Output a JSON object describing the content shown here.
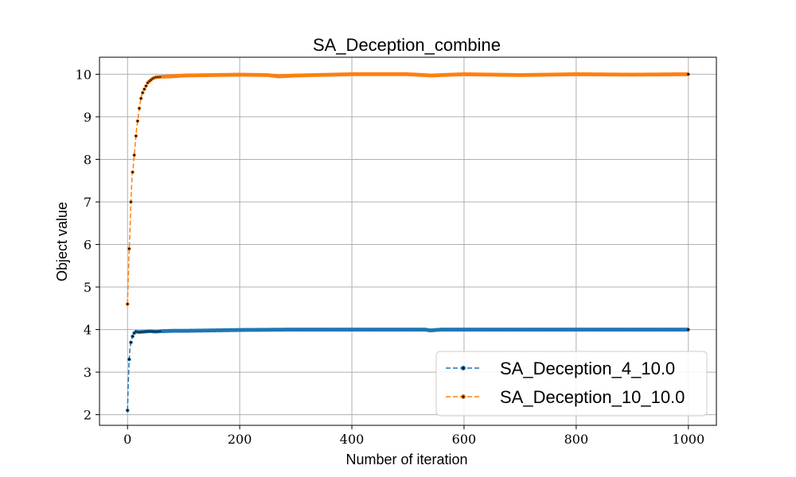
{
  "chart_data": {
    "type": "line",
    "title": "SA_Deception_combine",
    "xlabel": "Number of iteration",
    "ylabel": "Object value",
    "xlim": [
      -50,
      1050
    ],
    "ylim": [
      1.75,
      10.4
    ],
    "x_ticks": [
      0,
      200,
      400,
      600,
      800,
      1000
    ],
    "y_ticks": [
      2,
      3,
      4,
      5,
      6,
      7,
      8,
      9,
      10
    ],
    "grid": true,
    "legend_position": "lower-right",
    "series": [
      {
        "name": "SA_Deception_4_10.0",
        "color": "#1f77b4",
        "style": "dashed-with-dot-markers",
        "points": [
          [
            0,
            2.1
          ],
          [
            1,
            2.6
          ],
          [
            2,
            3.0
          ],
          [
            3,
            3.3
          ],
          [
            4,
            3.5
          ],
          [
            5,
            3.6
          ],
          [
            6,
            3.7
          ],
          [
            8,
            3.8
          ],
          [
            10,
            3.88
          ],
          [
            12,
            3.92
          ],
          [
            15,
            3.95
          ],
          [
            20,
            3.94
          ],
          [
            30,
            3.95
          ],
          [
            40,
            3.96
          ],
          [
            50,
            3.95
          ],
          [
            60,
            3.96
          ],
          [
            80,
            3.97
          ],
          [
            100,
            3.97
          ],
          [
            150,
            3.98
          ],
          [
            200,
            3.99
          ],
          [
            300,
            4.0
          ],
          [
            400,
            4.0
          ],
          [
            530,
            4.0
          ],
          [
            540,
            3.98
          ],
          [
            560,
            4.0
          ],
          [
            700,
            4.0
          ],
          [
            850,
            4.0
          ],
          [
            1000,
            4.0
          ]
        ]
      },
      {
        "name": "SA_Deception_10_10.0",
        "color": "#ff7f0e",
        "style": "dashed-with-dot-markers",
        "points": [
          [
            0,
            4.6
          ],
          [
            1,
            5.1
          ],
          [
            2,
            5.5
          ],
          [
            3,
            5.9
          ],
          [
            4,
            6.2
          ],
          [
            5,
            6.6
          ],
          [
            6,
            7.0
          ],
          [
            7,
            7.3
          ],
          [
            8,
            7.6
          ],
          [
            10,
            7.8
          ],
          [
            12,
            8.1
          ],
          [
            14,
            8.4
          ],
          [
            16,
            8.7
          ],
          [
            18,
            8.9
          ],
          [
            20,
            9.1
          ],
          [
            22,
            9.3
          ],
          [
            25,
            9.5
          ],
          [
            28,
            9.6
          ],
          [
            32,
            9.7
          ],
          [
            36,
            9.8
          ],
          [
            40,
            9.85
          ],
          [
            45,
            9.9
          ],
          [
            50,
            9.93
          ],
          [
            60,
            9.94
          ],
          [
            80,
            9.95
          ],
          [
            100,
            9.97
          ],
          [
            150,
            9.98
          ],
          [
            200,
            9.99
          ],
          [
            250,
            9.98
          ],
          [
            270,
            9.95
          ],
          [
            300,
            9.97
          ],
          [
            400,
            10.0
          ],
          [
            500,
            10.0
          ],
          [
            540,
            9.97
          ],
          [
            600,
            10.0
          ],
          [
            700,
            9.98
          ],
          [
            800,
            10.0
          ],
          [
            900,
            9.99
          ],
          [
            1000,
            10.0
          ]
        ]
      }
    ]
  }
}
